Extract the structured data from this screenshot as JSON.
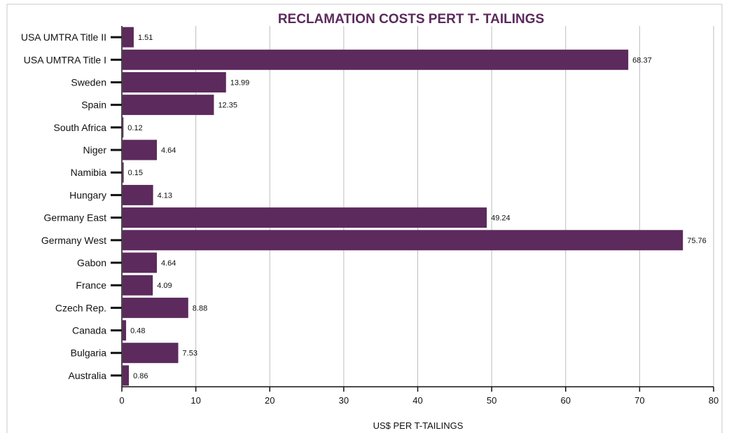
{
  "colors": {
    "bar": "#5c2a5c",
    "title": "#5c2a5c",
    "grid": "#bdbdbd",
    "axis": "#111111",
    "frame": "#c8c8c8"
  },
  "chart_data": {
    "type": "bar",
    "orientation": "horizontal",
    "title": "RECLAMATION COSTS PERT T- TAILINGS",
    "xlabel": "US$ PER T-TAILINGS",
    "ylabel": "",
    "xlim": [
      0,
      80
    ],
    "xticks": [
      0,
      10,
      20,
      30,
      40,
      50,
      60,
      70,
      80
    ],
    "grid": "vertical",
    "legend": "none",
    "categories": [
      "USA UMTRA Title II",
      "USA UMTRA Title I",
      "Sweden",
      "Spain",
      "South Africa",
      "Niger",
      "Namibia",
      "Hungary",
      "Germany East",
      "Germany West",
      "Gabon",
      "France",
      "Czech Rep.",
      "Canada",
      "Bulgaria",
      "Australia"
    ],
    "values": [
      1.51,
      68.37,
      13.99,
      12.35,
      0.12,
      4.64,
      0.15,
      4.13,
      49.24,
      75.76,
      4.64,
      4.09,
      8.88,
      0.48,
      7.53,
      0.86
    ],
    "data_labels": [
      "1.51",
      "68.37",
      "13.99",
      "12.35",
      "0.12",
      "4.64",
      "0.15",
      "4.13",
      "49.24",
      "75.76",
      "4.64",
      "4.09",
      "8.88",
      "0.48",
      "7.53",
      "0.86"
    ]
  }
}
